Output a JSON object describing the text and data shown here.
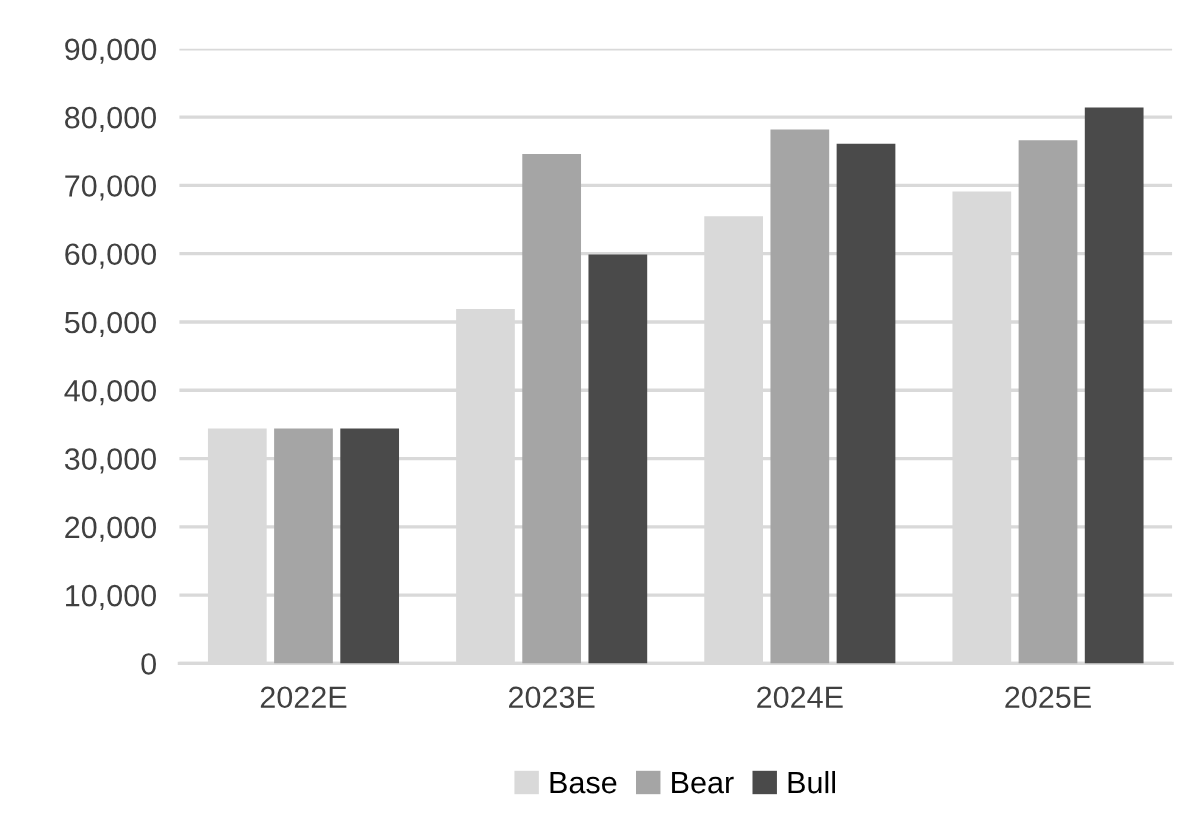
{
  "chart_data": {
    "type": "bar",
    "categories": [
      "2022E",
      "2023E",
      "2024E",
      "2025E"
    ],
    "series": [
      {
        "name": "Base",
        "color": "#d9d9d9",
        "values": [
          34400,
          51900,
          65500,
          69100
        ]
      },
      {
        "name": "Bear",
        "color": "#a5a5a5",
        "values": [
          34400,
          74600,
          78200,
          76600
        ]
      },
      {
        "name": "Bull",
        "color": "#4a4a4a",
        "values": [
          34400,
          59900,
          76100,
          81400
        ]
      }
    ],
    "ylim": [
      0,
      90000
    ],
    "yticks": [
      {
        "value": 0,
        "label": "0"
      },
      {
        "value": 10000,
        "label": "10,000"
      },
      {
        "value": 20000,
        "label": "20,000"
      },
      {
        "value": 30000,
        "label": "30,000"
      },
      {
        "value": 40000,
        "label": "40,000"
      },
      {
        "value": 50000,
        "label": "50,000"
      },
      {
        "value": 60000,
        "label": "60,000"
      },
      {
        "value": 70000,
        "label": "70,000"
      },
      {
        "value": 80000,
        "label": "80,000"
      },
      {
        "value": 90000,
        "label": "90,000"
      }
    ],
    "grid": "y",
    "legend": "bottom"
  }
}
